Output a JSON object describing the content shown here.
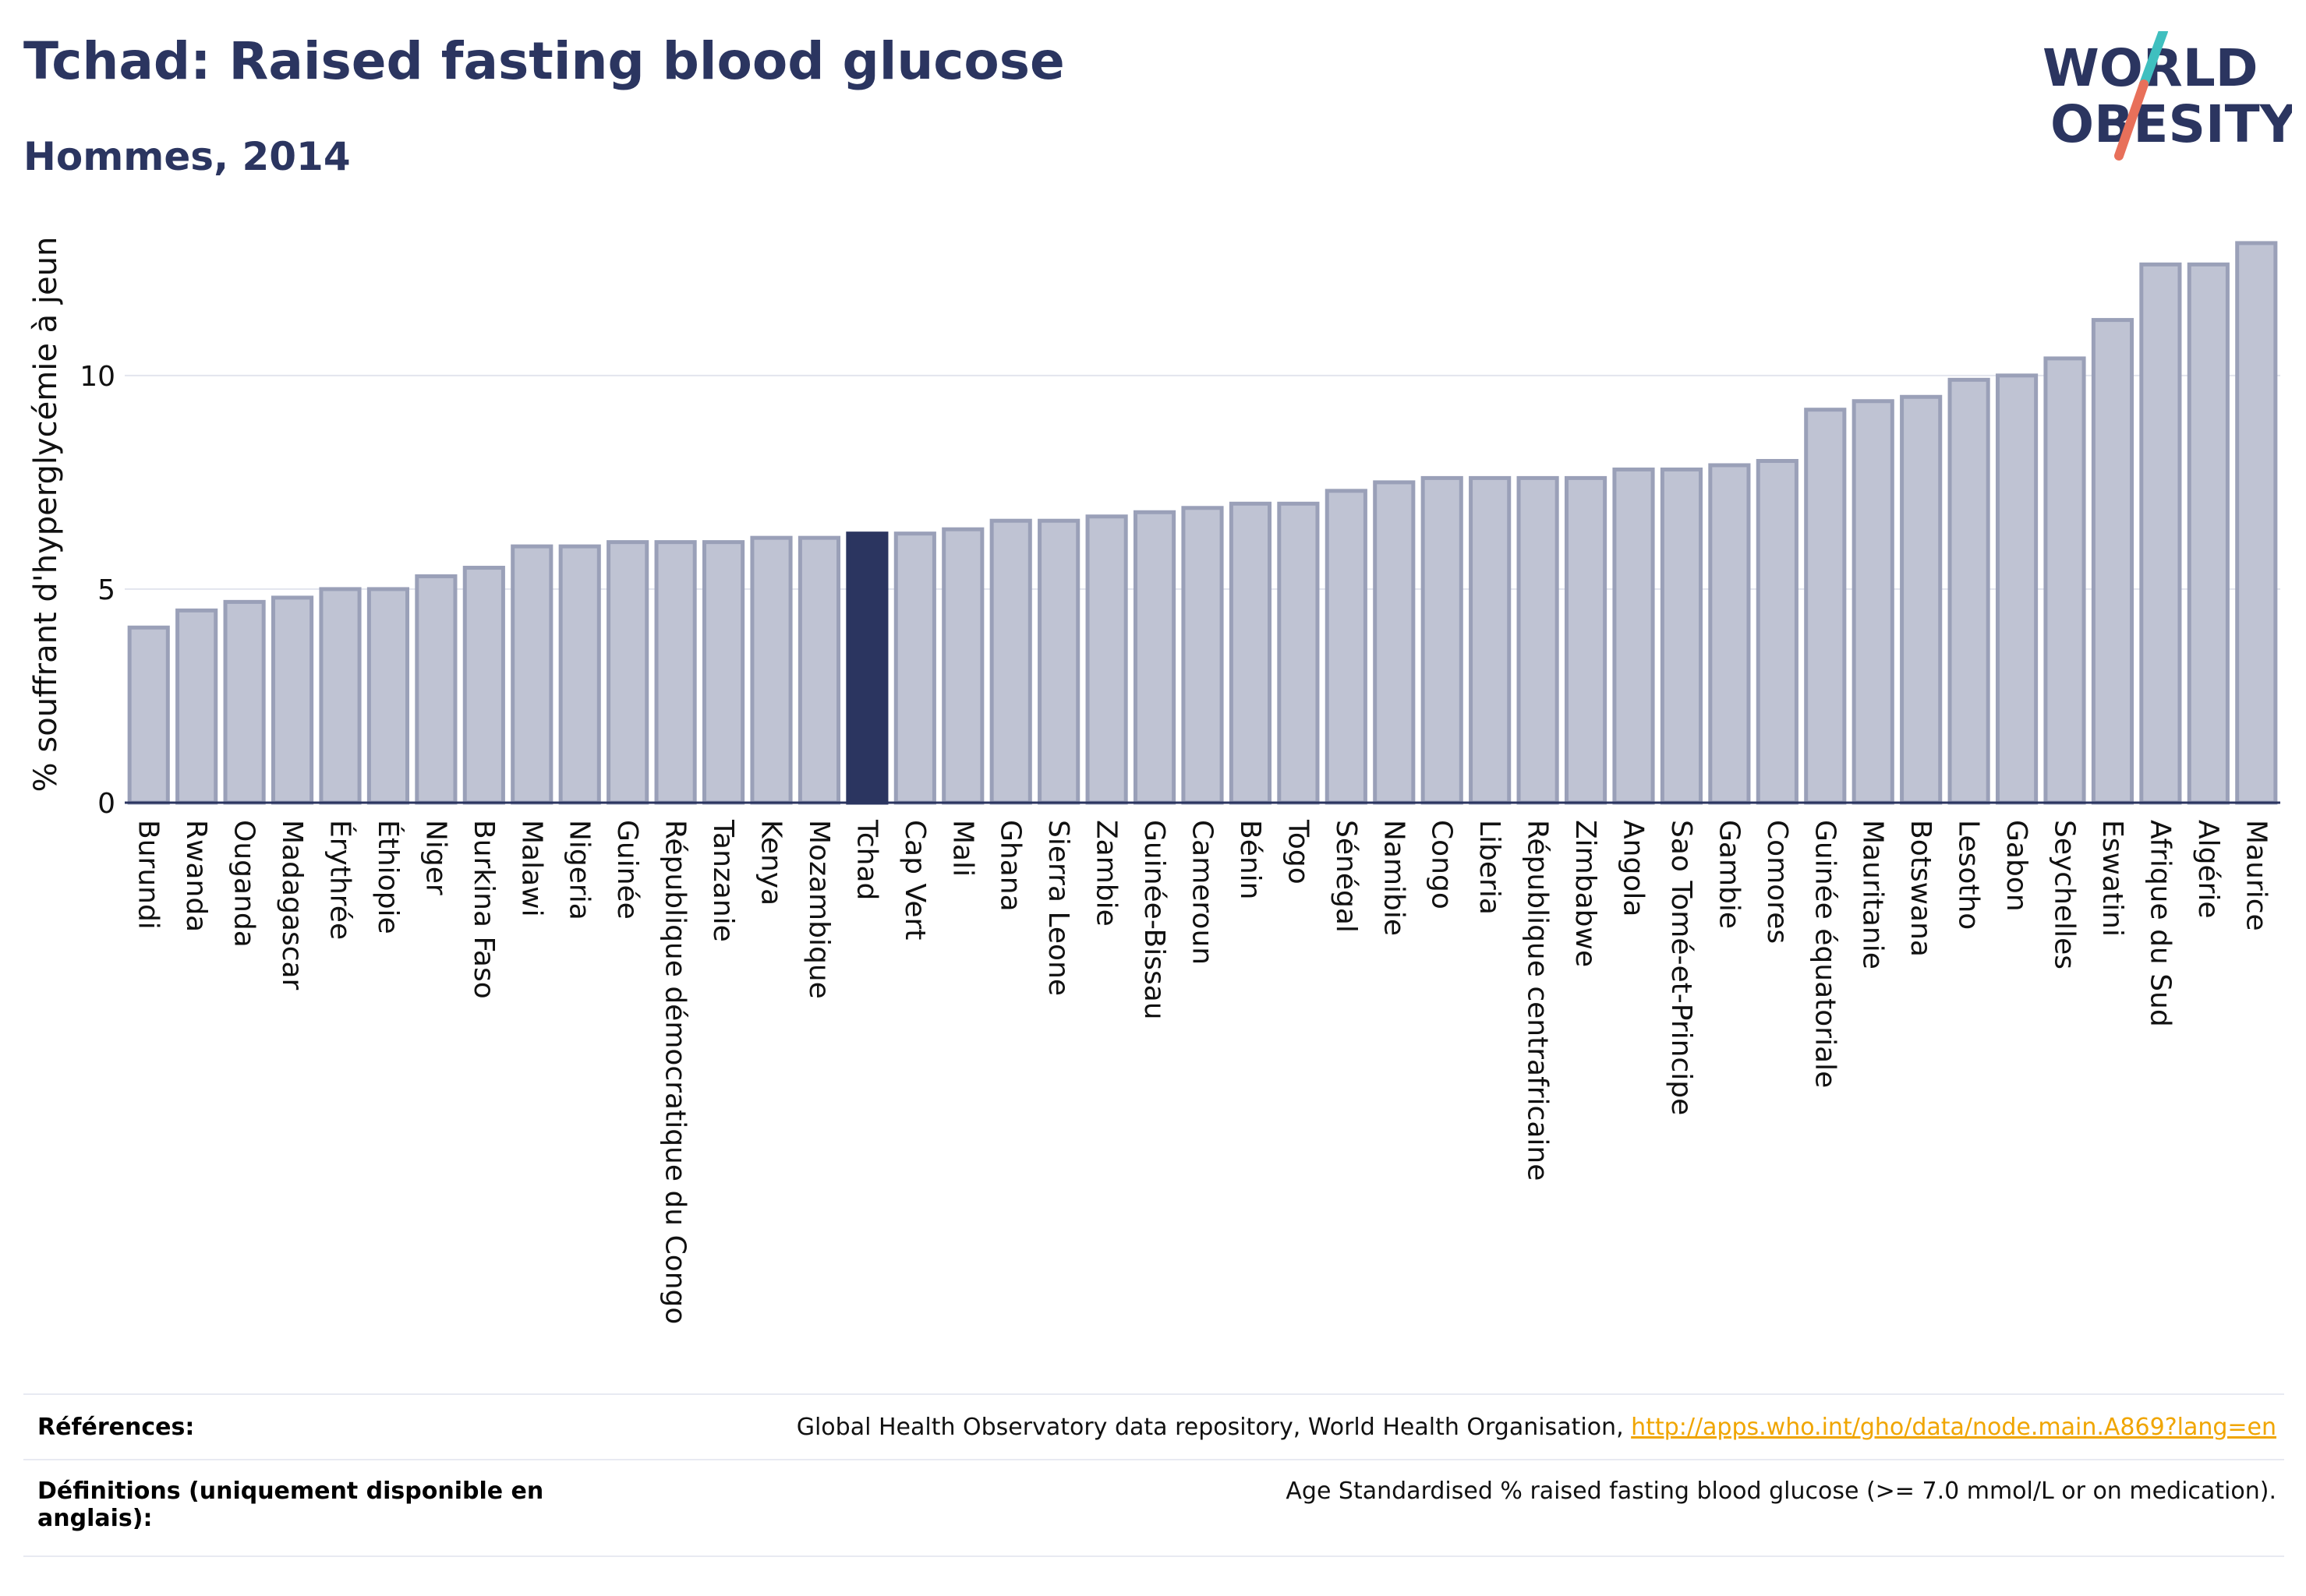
{
  "header": {
    "title": "Tchad: Raised fasting blood glucose",
    "subtitle": "Hommes, 2014"
  },
  "logo": {
    "line1": "WORLD",
    "line2": "OBESITY",
    "colors": {
      "navy": "#2b3560",
      "teal": "#3fbfbf",
      "coral": "#e8705a"
    }
  },
  "chart_data": {
    "type": "bar",
    "ylabel": "% souffrant d'hyperglycémie à jeun",
    "xlabel": "",
    "ylim": [
      0,
      13.5
    ],
    "yticks": [
      0,
      5,
      10
    ],
    "grid": true,
    "highlight": "Tchad",
    "colors": {
      "bar": "#bfc3d3",
      "bar_edge": "#9aa0b8",
      "highlight": "#2b3560"
    },
    "categories": [
      "Burundi",
      "Rwanda",
      "Ouganda",
      "Madagascar",
      "Érythrée",
      "Éthiopie",
      "Niger",
      "Burkina Faso",
      "Malawi",
      "Nigeria",
      "Guinée",
      "République démocratique du Congo",
      "Tanzanie",
      "Kenya",
      "Mozambique",
      "Tchad",
      "Cap Vert",
      "Mali",
      "Ghana",
      "Sierra Leone",
      "Zambie",
      "Guinée-Bissau",
      "Cameroun",
      "Bénin",
      "Togo",
      "Sénégal",
      "Namibie",
      "Congo",
      "Liberia",
      "République centrafricaine",
      "Zimbabwe",
      "Angola",
      "Sao Tomé-et-Principe",
      "Gambie",
      "Comores",
      "Guinée équatoriale",
      "Mauritanie",
      "Botswana",
      "Lesotho",
      "Gabon",
      "Seychelles",
      "Eswatini",
      "Afrique du Sud",
      "Algérie",
      "Maurice"
    ],
    "values": [
      4.1,
      4.5,
      4.7,
      4.8,
      5.0,
      5.0,
      5.3,
      5.5,
      6.0,
      6.0,
      6.1,
      6.1,
      6.1,
      6.2,
      6.2,
      6.3,
      6.3,
      6.4,
      6.6,
      6.6,
      6.7,
      6.8,
      6.9,
      7.0,
      7.0,
      7.3,
      7.5,
      7.6,
      7.6,
      7.6,
      7.6,
      7.8,
      7.8,
      7.9,
      8.0,
      9.2,
      9.4,
      9.5,
      9.9,
      10.0,
      10.4,
      11.3,
      12.6,
      12.6,
      13.1
    ]
  },
  "footer": {
    "references_label": "Références:",
    "references_text": "Global Health Observatory data repository, World Health Organisation, ",
    "references_link": "http://apps.who.int/gho/data/node.main.A869?lang=en",
    "definitions_label_line1": "Définitions (uniquement disponible en",
    "definitions_label_line2": "anglais):",
    "definitions_text": "Age Standardised % raised fasting blood glucose (>= 7.0 mmol/L or on medication)."
  }
}
